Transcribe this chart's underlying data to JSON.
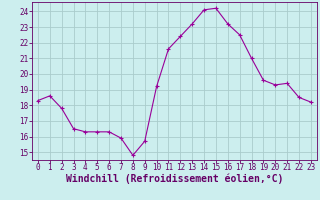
{
  "x": [
    0,
    1,
    2,
    3,
    4,
    5,
    6,
    7,
    8,
    9,
    10,
    11,
    12,
    13,
    14,
    15,
    16,
    17,
    18,
    19,
    20,
    21,
    22,
    23
  ],
  "y": [
    18.3,
    18.6,
    17.8,
    16.5,
    16.3,
    16.3,
    16.3,
    15.9,
    14.8,
    15.7,
    19.2,
    21.6,
    22.4,
    23.2,
    24.1,
    24.2,
    23.2,
    22.5,
    21.0,
    19.6,
    19.3,
    19.4,
    18.5,
    18.2
  ],
  "line_color": "#990099",
  "marker": "+",
  "marker_size": 3,
  "background_color": "#cceeee",
  "grid_color": "#aacccc",
  "xlabel": "Windchill (Refroidissement éolien,°C)",
  "ylim": [
    14.5,
    24.6
  ],
  "xlim": [
    -0.5,
    23.5
  ],
  "yticks": [
    15,
    16,
    17,
    18,
    19,
    20,
    21,
    22,
    23,
    24
  ],
  "xticks": [
    0,
    1,
    2,
    3,
    4,
    5,
    6,
    7,
    8,
    9,
    10,
    11,
    12,
    13,
    14,
    15,
    16,
    17,
    18,
    19,
    20,
    21,
    22,
    23
  ],
  "tick_fontsize": 5.5,
  "xlabel_fontsize": 7.0,
  "text_color": "#660066"
}
